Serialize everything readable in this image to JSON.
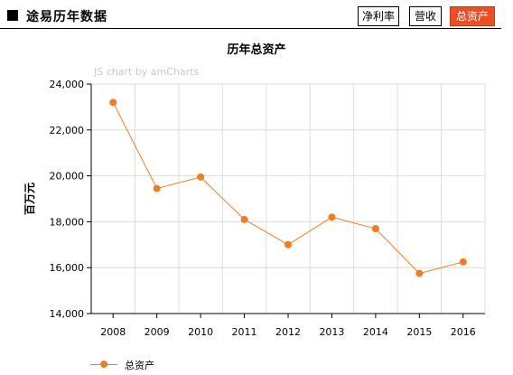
{
  "header": {
    "title": "途易历年数据",
    "tabs": [
      {
        "label": "净利率",
        "active": false
      },
      {
        "label": "营收",
        "active": false
      },
      {
        "label": "总资产",
        "active": true
      }
    ],
    "active_color": "#e94e24"
  },
  "watermark": "JS chart by amCharts",
  "chart_data": {
    "type": "line",
    "title": "历年总资产",
    "ylabel": "百万元",
    "xlabel": "",
    "categories": [
      "2008",
      "2009",
      "2010",
      "2011",
      "2012",
      "2013",
      "2014",
      "2015",
      "2016"
    ],
    "series": [
      {
        "name": "总资产",
        "color": "#f07d1f",
        "values": [
          23200,
          19450,
          19950,
          18100,
          17000,
          18200,
          17700,
          15750,
          16250
        ]
      }
    ],
    "ylim": [
      14000,
      24000
    ],
    "yticks": [
      14000,
      16000,
      18000,
      20000,
      22000,
      24000
    ],
    "ytick_labels": [
      "14,000",
      "16,000",
      "18,000",
      "20,000",
      "22,000",
      "24,000"
    ],
    "grid": true,
    "legend": "bottom-left"
  }
}
